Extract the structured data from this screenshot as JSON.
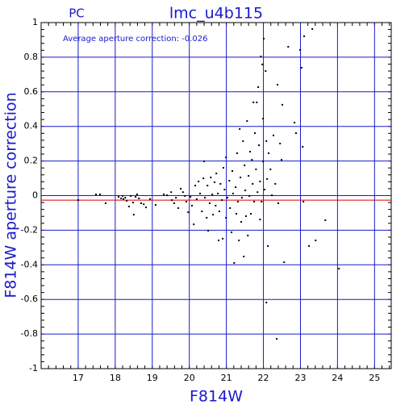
{
  "chart_data": {
    "type": "scatter",
    "title": "lmc_u4b115",
    "subtitle": "PC",
    "annotation": "Average aperture correction: -0.026",
    "average": -0.026,
    "average_color": "#e00000",
    "x_label": "F814W",
    "y_label": "F814W aperture correction",
    "xlim": [
      16,
      25.45
    ],
    "ylim": [
      -1,
      1
    ],
    "xticks": [
      17,
      18,
      19,
      20,
      21,
      22,
      23,
      24,
      25
    ],
    "yticks": [
      -1,
      -0.8,
      -0.6,
      -0.4,
      -0.2,
      0,
      0.2,
      0.4,
      0.6,
      0.8,
      1
    ],
    "grid": true,
    "grid_color": "#1a1acc",
    "color": "#000000",
    "series": [
      {
        "x": [
          17.0,
          17.48,
          17.59,
          17.74,
          18.09,
          18.16,
          18.2,
          18.22,
          18.27,
          18.31,
          18.37,
          18.42,
          18.48,
          18.5,
          18.55,
          18.59,
          18.64,
          18.7,
          18.77,
          18.83,
          18.94,
          19.09,
          19.31,
          19.4,
          19.51,
          19.53,
          19.59,
          19.64,
          19.7,
          19.77,
          19.83,
          19.88,
          19.92,
          19.97,
          20.03,
          20.07,
          20.12,
          20.16,
          20.2,
          20.25,
          20.29,
          20.34,
          20.38,
          20.4,
          20.42,
          20.47,
          20.49,
          20.51,
          20.55,
          20.58,
          20.62,
          20.64,
          20.68,
          20.71,
          20.73,
          20.77,
          20.79,
          20.81,
          20.84,
          20.88,
          20.9,
          20.92,
          20.95,
          20.99,
          20.99,
          21.03,
          21.08,
          21.1,
          21.14,
          21.16,
          21.18,
          21.21,
          21.25,
          21.27,
          21.29,
          21.31,
          21.34,
          21.36,
          21.38,
          21.4,
          21.42,
          21.45,
          21.47,
          21.49,
          21.51,
          21.53,
          21.56,
          21.58,
          21.6,
          21.62,
          21.64,
          21.66,
          21.69,
          21.71,
          21.73,
          21.75,
          21.77,
          21.8,
          21.82,
          21.84,
          21.86,
          21.88,
          21.91,
          21.91,
          21.93,
          21.95,
          21.97,
          21.99,
          21.99,
          22.01,
          22.03,
          22.06,
          22.08,
          22.08,
          22.1,
          22.12,
          22.14,
          22.19,
          22.23,
          22.27,
          22.32,
          22.36,
          22.38,
          22.4,
          22.45,
          22.49,
          22.51,
          22.56,
          22.67,
          22.84,
          22.88,
          22.99,
          23.03,
          23.06,
          23.08,
          23.1,
          23.23,
          23.32,
          23.41,
          23.67,
          24.04
        ],
        "values": [
          -0.026,
          0.007,
          0.007,
          -0.044,
          -0.007,
          -0.016,
          -0.002,
          -0.02,
          -0.012,
          -0.03,
          -0.063,
          -0.002,
          -0.04,
          -0.11,
          -0.007,
          0.007,
          -0.016,
          -0.044,
          -0.05,
          -0.068,
          -0.02,
          -0.054,
          0.007,
          0.002,
          0.02,
          -0.026,
          -0.044,
          -0.012,
          -0.072,
          0.04,
          0.02,
          -0.002,
          -0.035,
          -0.096,
          -0.007,
          -0.058,
          -0.166,
          0.058,
          -0.02,
          0.082,
          0.012,
          -0.091,
          0.1,
          0.198,
          -0.012,
          -0.128,
          0.058,
          -0.203,
          -0.044,
          0.105,
          0.007,
          -0.11,
          0.077,
          -0.058,
          0.128,
          0.012,
          -0.259,
          -0.091,
          0.068,
          -0.026,
          -0.249,
          0.161,
          0.035,
          -0.128,
          0.221,
          -0.012,
          0.086,
          -0.072,
          -0.212,
          0.142,
          0.012,
          -0.389,
          0.049,
          -0.105,
          0.245,
          -0.035,
          -0.259,
          0.385,
          0.105,
          -0.152,
          -0.012,
          0.315,
          -0.352,
          0.175,
          0.03,
          -0.119,
          0.431,
          -0.231,
          0.114,
          -0.002,
          0.254,
          -0.105,
          0.207,
          0.068,
          0.539,
          -0.035,
          0.361,
          0.152,
          0.539,
          0.02,
          0.627,
          0.291,
          -0.138,
          0.082,
          0.804,
          -0.035,
          0.758,
          0.445,
          0.198,
          0.907,
          0.035,
          0.72,
          -0.618,
          0.315,
          0.096,
          -0.291,
          0.245,
          0.152,
          0.002,
          0.348,
          0.068,
          -0.828,
          0.641,
          -0.044,
          0.301,
          0.207,
          0.525,
          -0.385,
          0.86,
          0.422,
          0.361,
          0.842,
          0.739,
          0.282,
          -0.035,
          0.921,
          -0.291,
          0.963,
          -0.259,
          -0.142,
          -0.422
        ]
      }
    ]
  }
}
